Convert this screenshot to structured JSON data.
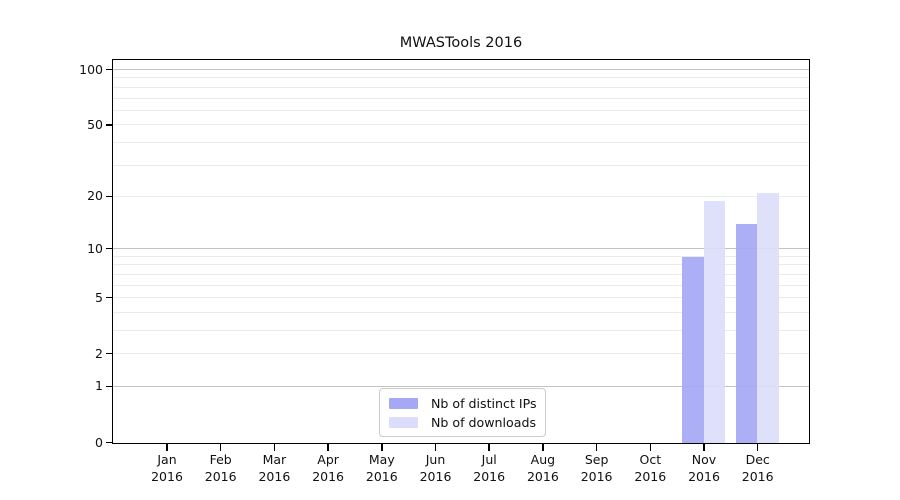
{
  "chart_data": {
    "type": "bar",
    "title": "MWASTools 2016",
    "categories": [
      "Jan",
      "Feb",
      "Mar",
      "Apr",
      "May",
      "Jun",
      "Jul",
      "Aug",
      "Sep",
      "Oct",
      "Nov",
      "Dec"
    ],
    "x_year": "2016",
    "series": [
      {
        "name": "Nb of distinct IPs",
        "color": "#a5a8f4",
        "values": [
          0,
          0,
          0,
          0,
          0,
          0,
          0,
          0,
          0,
          0,
          9,
          14
        ]
      },
      {
        "name": "Nb of downloads",
        "color": "#dcddfa",
        "values": [
          0,
          0,
          0,
          0,
          0,
          0,
          0,
          0,
          0,
          0,
          19,
          21
        ]
      }
    ],
    "xlabel": "",
    "ylabel": "",
    "yscale": "log1p",
    "yticks": [
      0,
      1,
      2,
      5,
      10,
      20,
      50,
      100
    ],
    "y_minor_gridlines": [
      2,
      3,
      4,
      5,
      6,
      7,
      8,
      9,
      20,
      30,
      40,
      50,
      60,
      70,
      80,
      90
    ],
    "y_major_gridlines": [
      1,
      10,
      100
    ],
    "ylim": [
      0,
      112
    ],
    "grid": true,
    "legend_position": "lower center"
  },
  "colors": {
    "distinct_ips_bar": "#a5a8f4",
    "downloads_bar": "#dcddfa",
    "major_grid": "#c3c3c3",
    "minor_grid": "#ebebeb",
    "axis": "#000000",
    "background": "#ffffff"
  }
}
